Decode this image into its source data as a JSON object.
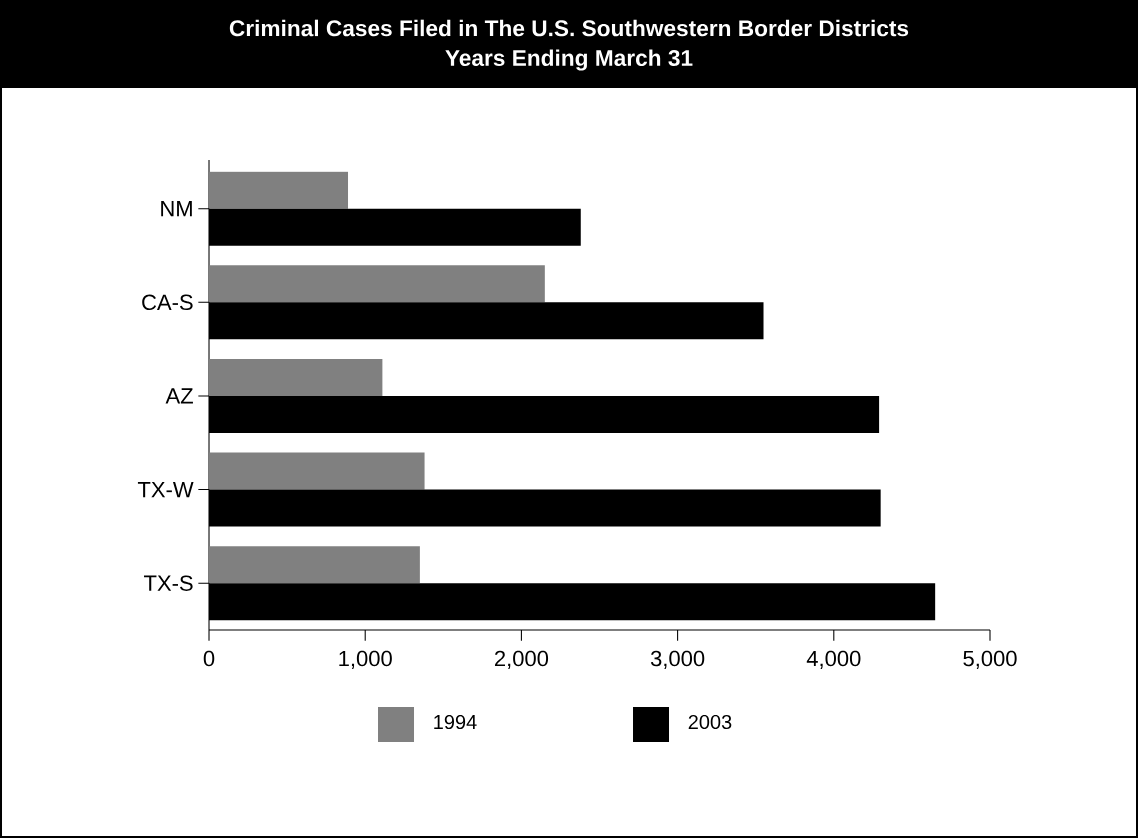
{
  "chart_data": {
    "type": "bar",
    "orientation": "horizontal",
    "title": "Criminal Cases Filed in The U.S. Southwestern Border Districts",
    "subtitle": "Years Ending March 31",
    "categories": [
      "NM",
      "CA-S",
      "AZ",
      "TX-W",
      "TX-S"
    ],
    "series": [
      {
        "name": "1994",
        "color": "#808080",
        "values": [
          890,
          2150,
          1110,
          1380,
          1350
        ]
      },
      {
        "name": "2003",
        "color": "#000000",
        "values": [
          2380,
          3550,
          4290,
          4300,
          4650
        ]
      }
    ],
    "xlim": [
      0,
      5000
    ],
    "xticks": [
      0,
      {
        "value": 1000,
        "label": "1,000"
      },
      {
        "value": 2000,
        "label": "2,000"
      },
      {
        "value": 3000,
        "label": "3,000"
      },
      {
        "value": 4000,
        "label": "4,000"
      },
      {
        "value": 5000,
        "label": "5,000"
      }
    ],
    "grid": false,
    "legend": "bottom"
  }
}
